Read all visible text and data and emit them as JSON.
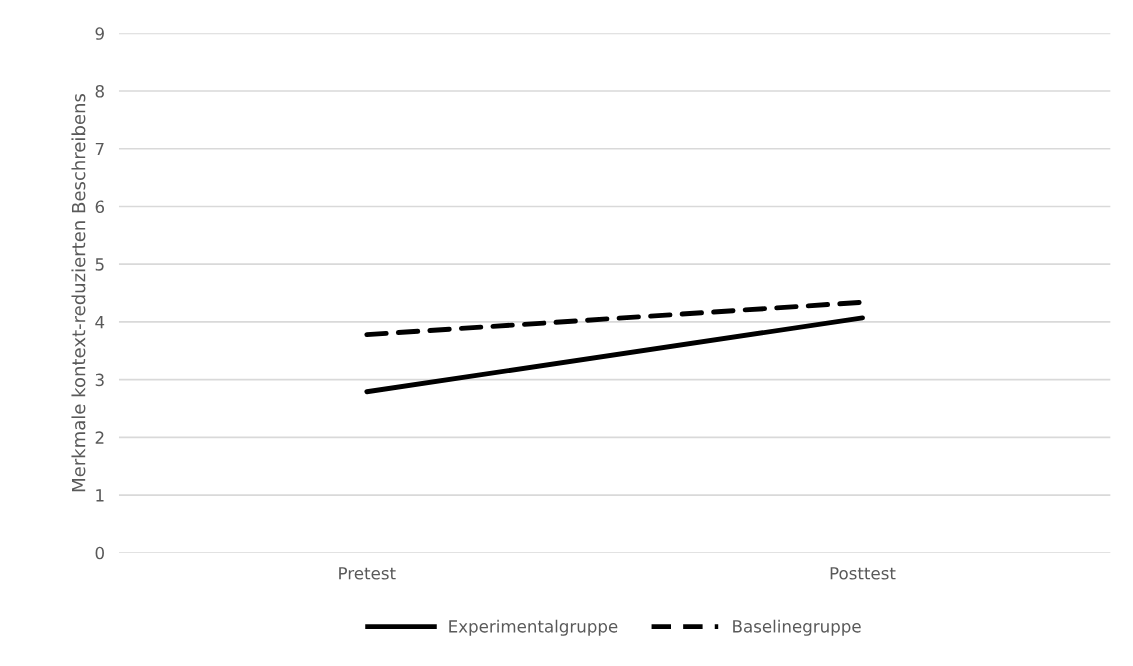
{
  "chart_data": {
    "type": "line",
    "ylabel": "Merkmale kontext-reduzierten Beschreibens",
    "categories": [
      "Pretest",
      "Posttest"
    ],
    "series": [
      {
        "name": "Experimentalgruppe",
        "color": "#000000",
        "values": [
          2.79,
          4.07
        ],
        "line_style": "solid"
      },
      {
        "name": "Baselinegruppe",
        "color": "#000000",
        "values": [
          3.78,
          4.34
        ],
        "line_style": "dashed"
      }
    ],
    "ylim": [
      0,
      9
    ],
    "yticks": [
      0,
      1,
      2,
      3,
      4,
      5,
      6,
      7,
      8,
      9
    ],
    "grid": "y",
    "legend": "bottom",
    "marker": "none"
  }
}
